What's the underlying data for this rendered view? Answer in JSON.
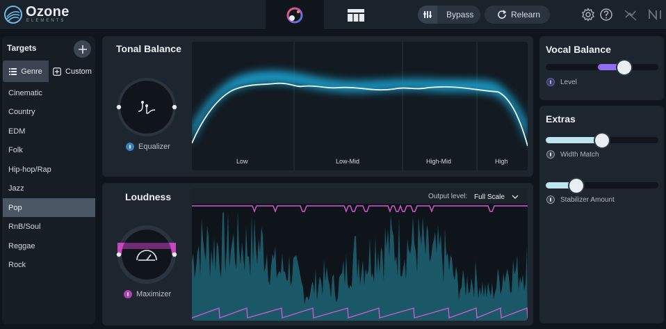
{
  "app": {
    "name": "Ozone",
    "subtitle": "ELEMENTS"
  },
  "toolbar": {
    "bypass_label": "Bypass",
    "relearn_label": "Relearn"
  },
  "targets": {
    "title": "Targets",
    "tabs": {
      "genre": "Genre",
      "custom": "Custom"
    },
    "items": [
      "Cinematic",
      "Country",
      "EDM",
      "Folk",
      "Hip-hop/Rap",
      "Jazz",
      "Pop",
      "RnB/Soul",
      "Reggae",
      "Rock"
    ],
    "selected": "Pop"
  },
  "tonal_balance": {
    "title": "Tonal Balance",
    "knob_label": "Equalizer",
    "bands": [
      "Low",
      "Low-Mid",
      "High-Mid",
      "High"
    ]
  },
  "loudness": {
    "title": "Loudness",
    "knob_label": "Maximizer",
    "output_level_label": "Output level:",
    "output_level_value": "Full Scale"
  },
  "vocal_balance": {
    "title": "Vocal Balance",
    "level_label": "Level",
    "level_value": 0.7
  },
  "extras": {
    "title": "Extras",
    "width_match_label": "Width Match",
    "width_match_value": 0.5,
    "stabilizer_label": "Stabilizer Amount",
    "stabilizer_value": 0.27
  },
  "colors": {
    "accent_blue": "#4aa8e0",
    "accent_purple": "#8f6cf0",
    "accent_magenta": "#e050d8",
    "curve_glow": "#27b8e6",
    "loudness_fill": "#1c5f70"
  }
}
